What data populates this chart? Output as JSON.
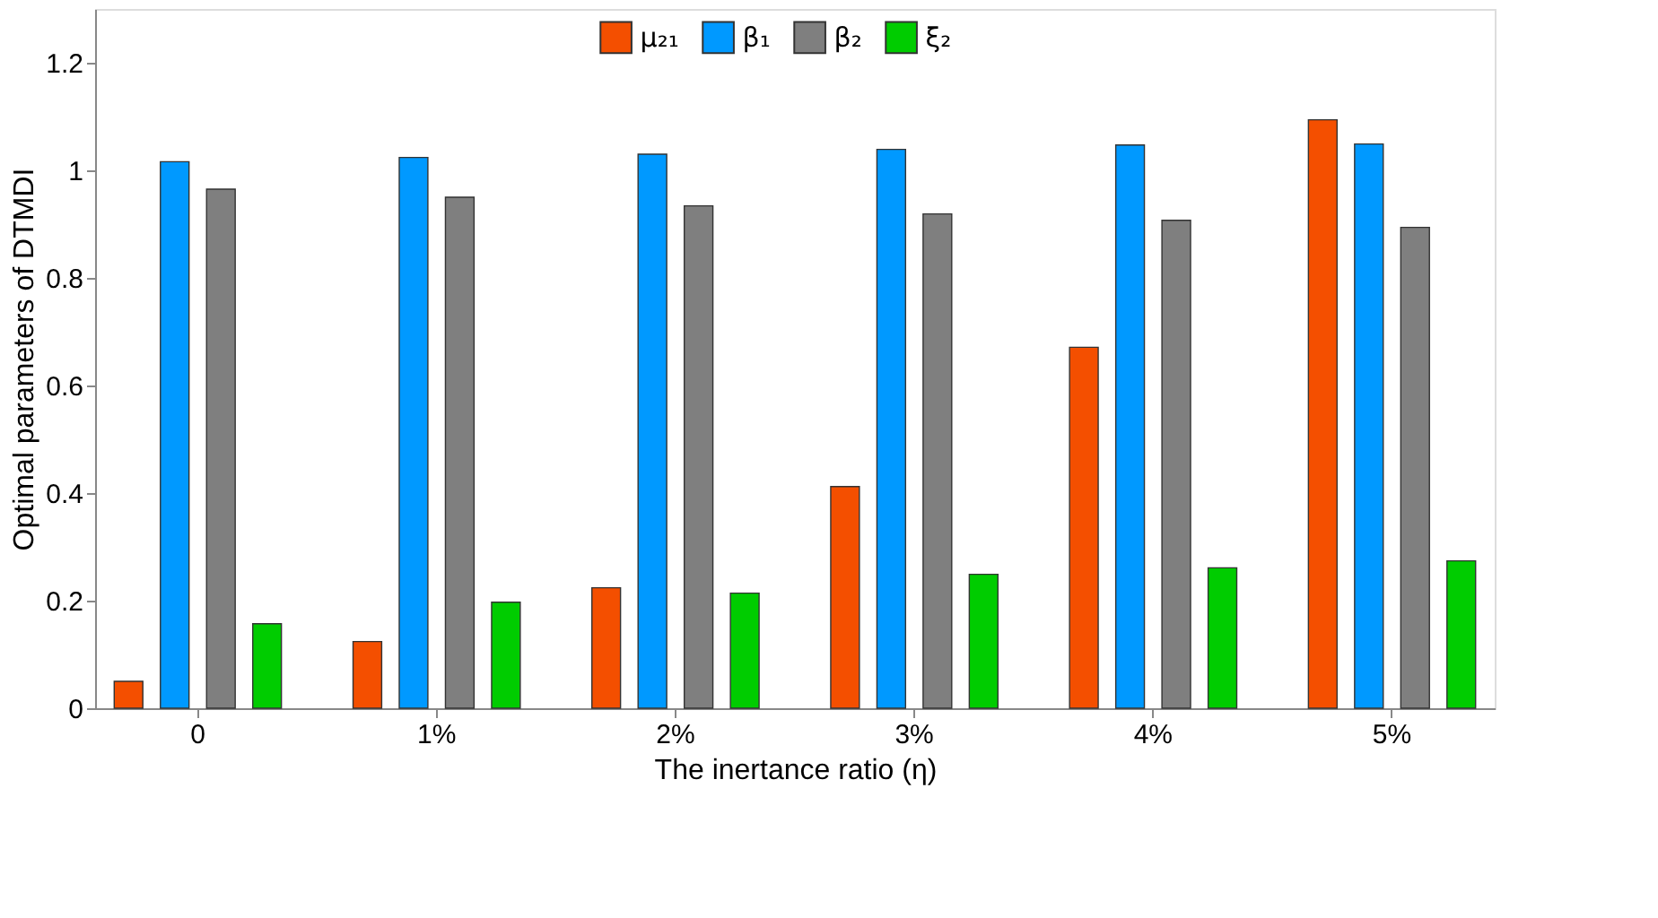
{
  "chart_data": {
    "type": "bar",
    "xlabel": "The inertance ratio (η)",
    "ylabel": "Optimal parameters of DTMDI",
    "categories": [
      "0",
      "1%",
      "2%",
      "3%",
      "4%",
      "5%"
    ],
    "series": [
      {
        "name": "μ₂₁",
        "color": "#f44f00",
        "values": [
          0.05,
          0.124,
          0.224,
          0.412,
          0.671,
          1.094
        ]
      },
      {
        "name": "β₁",
        "color": "#0099ff",
        "values": [
          1.016,
          1.024,
          1.03,
          1.039,
          1.047,
          1.049
        ]
      },
      {
        "name": "β₂",
        "color": "#7f7f7f",
        "values": [
          0.965,
          0.95,
          0.934,
          0.919,
          0.907,
          0.894
        ]
      },
      {
        "name": "ξ₂",
        "color": "#00cc00",
        "values": [
          0.157,
          0.197,
          0.214,
          0.249,
          0.261,
          0.274
        ]
      }
    ],
    "ylim": [
      0,
      1.3
    ],
    "yticks": [
      0,
      0.2,
      0.4,
      0.6,
      0.8,
      1,
      1.2
    ],
    "grid": false,
    "legend": "top"
  }
}
